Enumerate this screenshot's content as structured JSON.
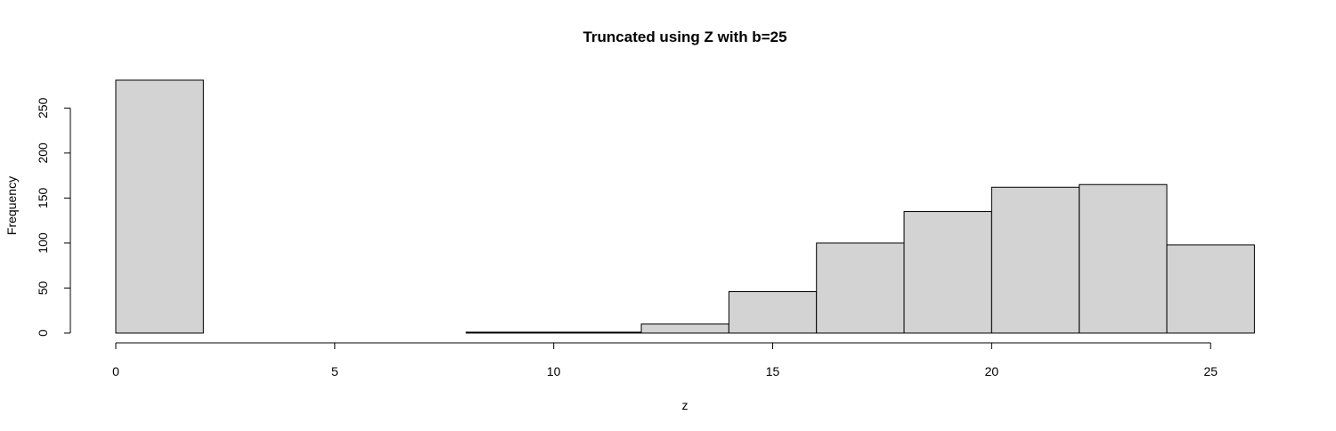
{
  "chart_data": {
    "type": "bar",
    "title": "Truncated using Z with b=25",
    "xlabel": "z",
    "ylabel": "Frequency",
    "bins": [
      {
        "from": 0,
        "to": 2,
        "count": 281
      },
      {
        "from": 2,
        "to": 4,
        "count": 0
      },
      {
        "from": 4,
        "to": 6,
        "count": 0
      },
      {
        "from": 6,
        "to": 8,
        "count": 0
      },
      {
        "from": 8,
        "to": 10,
        "count": 1
      },
      {
        "from": 10,
        "to": 12,
        "count": 1
      },
      {
        "from": 12,
        "to": 14,
        "count": 10
      },
      {
        "from": 14,
        "to": 16,
        "count": 46
      },
      {
        "from": 16,
        "to": 18,
        "count": 100
      },
      {
        "from": 18,
        "to": 20,
        "count": 135
      },
      {
        "from": 20,
        "to": 22,
        "count": 162
      },
      {
        "from": 22,
        "to": 24,
        "count": 165
      },
      {
        "from": 24,
        "to": 26,
        "count": 98
      }
    ],
    "xticks": [
      0,
      5,
      10,
      15,
      20,
      25
    ],
    "xtick_labels": [
      "0",
      "5",
      "10",
      "15",
      "20",
      "25"
    ],
    "yticks": [
      0,
      50,
      100,
      150,
      200,
      250
    ],
    "ytick_labels": [
      "0",
      "50",
      "100",
      "150",
      "200",
      "250"
    ],
    "xlim": [
      0,
      26
    ],
    "ylim": [
      0,
      281
    ],
    "bar_color": "#d3d3d3",
    "grid": false
  }
}
